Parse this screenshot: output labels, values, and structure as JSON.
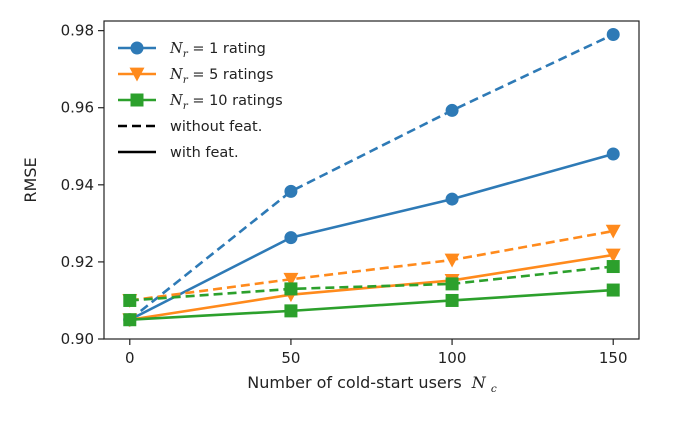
{
  "chart_data": {
    "type": "line",
    "title": "",
    "xlabel": "Number of cold-start users",
    "xlabel_math": "N",
    "xlabel_math_sub": "c",
    "ylabel": "RMSE",
    "x": [
      0,
      50,
      100,
      150
    ],
    "x_ticks": [
      "0",
      "50",
      "100",
      "150"
    ],
    "y_ticks": [
      "0.90",
      "0.92",
      "0.94",
      "0.96",
      "0.98"
    ],
    "xlim": [
      -8,
      158
    ],
    "ylim": [
      0.9,
      0.9825
    ],
    "grid": false,
    "legend_position": "top-left",
    "series": [
      {
        "name": "N_r = 1 rating",
        "color": "#2e7ab6",
        "marker": "circle",
        "linestyle": "dashed",
        "values": [
          0.905,
          0.9383,
          0.9593,
          0.979
        ]
      },
      {
        "name": "N_r = 1 rating",
        "color": "#2e7ab6",
        "marker": "circle",
        "linestyle": "solid",
        "values": [
          0.905,
          0.9263,
          0.9363,
          0.948
        ]
      },
      {
        "name": "N_r = 5 ratings",
        "color": "#ff8a1c",
        "marker": "triangle-down",
        "linestyle": "dashed",
        "values": [
          0.91,
          0.9155,
          0.9205,
          0.928
        ]
      },
      {
        "name": "N_r = 5 ratings",
        "color": "#ff8a1c",
        "marker": "triangle-down",
        "linestyle": "solid",
        "values": [
          0.905,
          0.9115,
          0.9152,
          0.9218
        ]
      },
      {
        "name": "N_r = 10 ratings",
        "color": "#2ca02c",
        "marker": "square",
        "linestyle": "dashed",
        "values": [
          0.91,
          0.913,
          0.9143,
          0.9188
        ]
      },
      {
        "name": "N_r = 10 ratings",
        "color": "#2ca02c",
        "marker": "square",
        "linestyle": "solid",
        "values": [
          0.905,
          0.9073,
          0.91,
          0.9127
        ]
      }
    ],
    "legend": [
      {
        "math": "N",
        "sub": "r",
        "text": " = 1 rating",
        "color": "#2e7ab6",
        "marker": "circle",
        "linestyle": "solid"
      },
      {
        "math": "N",
        "sub": "r",
        "text": " = 5 ratings",
        "color": "#ff8a1c",
        "marker": "triangle-down",
        "linestyle": "solid"
      },
      {
        "math": "N",
        "sub": "r",
        "text": " = 10 ratings",
        "color": "#2ca02c",
        "marker": "square",
        "linestyle": "solid"
      },
      {
        "math": "",
        "sub": "",
        "text": "without feat.",
        "color": "#000000",
        "marker": "none",
        "linestyle": "dashed"
      },
      {
        "math": "",
        "sub": "",
        "text": "with feat.",
        "color": "#000000",
        "marker": "none",
        "linestyle": "solid"
      }
    ]
  }
}
